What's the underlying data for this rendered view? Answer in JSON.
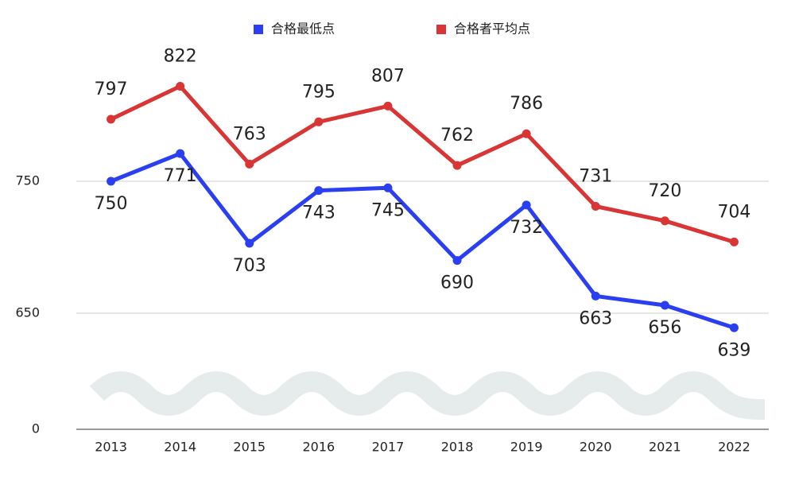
{
  "chart_data": {
    "type": "line",
    "categories": [
      "2013",
      "2014",
      "2015",
      "2016",
      "2017",
      "2018",
      "2019",
      "2020",
      "2021",
      "2022"
    ],
    "series": [
      {
        "name": "合格最低点",
        "color": "#2b3ff2",
        "values": [
          750,
          771,
          703,
          743,
          745,
          690,
          732,
          663,
          656,
          639
        ]
      },
      {
        "name": "合格者平均点",
        "color": "#d93535",
        "values": [
          797,
          822,
          763,
          795,
          807,
          762,
          786,
          731,
          720,
          704
        ]
      }
    ],
    "ylim": [
      0,
      850
    ],
    "y_break": [
      0,
      600
    ],
    "yticks": [
      0,
      650,
      750
    ],
    "grid": true,
    "legend": "top"
  }
}
